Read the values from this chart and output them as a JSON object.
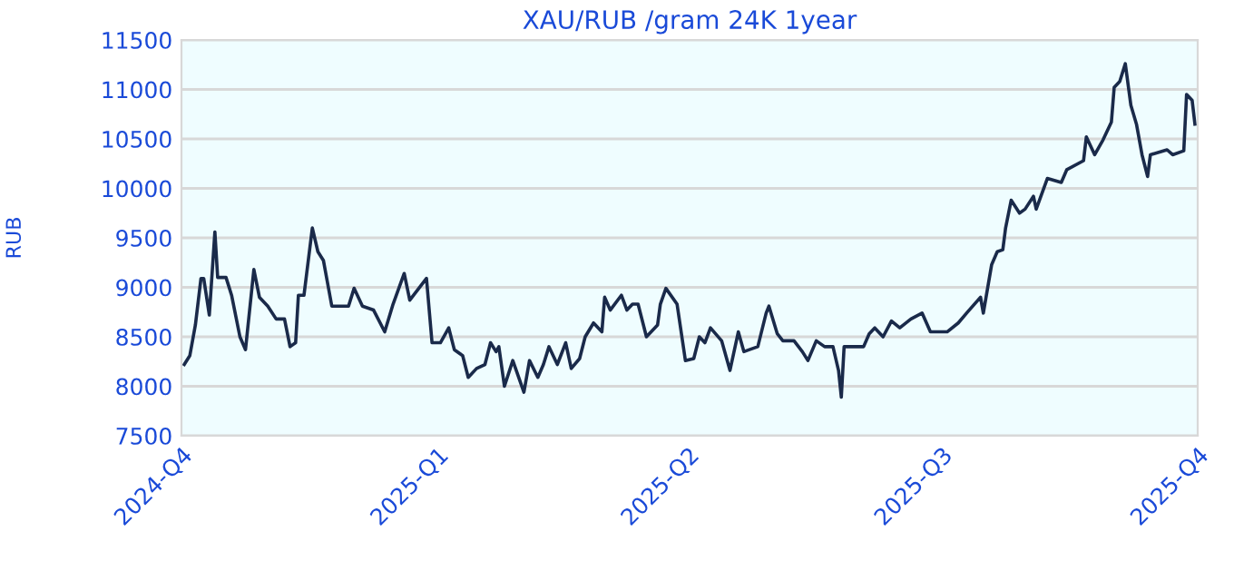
{
  "chart_data": {
    "type": "line",
    "title": "XAU/RUB /gram 24K 1year",
    "ylabel": "RUB",
    "x": [
      "2024-10-02",
      "2024-10-04",
      "2024-10-06",
      "2024-10-08",
      "2024-10-09",
      "2024-10-11",
      "2024-10-13",
      "2024-10-14",
      "2024-10-17",
      "2024-10-19",
      "2024-10-22",
      "2024-10-24",
      "2024-10-27",
      "2024-10-29",
      "2024-11-01",
      "2024-11-04",
      "2024-11-07",
      "2024-11-09",
      "2024-11-11",
      "2024-11-12",
      "2024-11-14",
      "2024-11-17",
      "2024-11-19",
      "2024-11-21",
      "2024-11-24",
      "2024-11-30",
      "2024-12-02",
      "2024-12-05",
      "2024-12-09",
      "2024-12-13",
      "2024-12-16",
      "2024-12-20",
      "2024-12-22",
      "2024-12-28",
      "2024-12-30",
      "2025-01-02",
      "2025-01-05",
      "2025-01-07",
      "2025-01-10",
      "2025-01-12",
      "2025-01-15",
      "2025-01-18",
      "2025-01-20",
      "2025-01-22",
      "2025-01-23",
      "2025-01-25",
      "2025-01-28",
      "2025-02-01",
      "2025-02-03",
      "2025-02-06",
      "2025-02-08",
      "2025-02-10",
      "2025-02-13",
      "2025-02-16",
      "2025-02-18",
      "2025-02-21",
      "2025-02-23",
      "2025-02-26",
      "2025-03-01",
      "2025-03-02",
      "2025-03-04",
      "2025-03-08",
      "2025-03-10",
      "2025-03-12",
      "2025-03-14",
      "2025-03-17",
      "2025-03-21",
      "2025-03-22",
      "2025-03-24",
      "2025-03-28",
      "2025-03-31",
      "2025-04-03",
      "2025-04-05",
      "2025-04-07",
      "2025-04-09",
      "2025-04-13",
      "2025-04-16",
      "2025-04-19",
      "2025-04-21",
      "2025-04-23",
      "2025-04-26",
      "2025-04-29",
      "2025-04-30",
      "2025-05-03",
      "2025-05-05",
      "2025-05-09",
      "2025-05-12",
      "2025-05-14",
      "2025-05-17",
      "2025-05-20",
      "2025-05-23",
      "2025-05-25",
      "2025-05-26",
      "2025-05-27",
      "2025-06-03",
      "2025-06-05",
      "2025-06-07",
      "2025-06-10",
      "2025-06-13",
      "2025-06-16",
      "2025-06-20",
      "2025-06-24",
      "2025-06-27",
      "2025-07-03",
      "2025-07-07",
      "2025-07-10",
      "2025-07-15",
      "2025-07-16",
      "2025-07-19",
      "2025-07-21",
      "2025-07-23",
      "2025-07-24",
      "2025-07-26",
      "2025-07-29",
      "2025-07-31",
      "2025-08-03",
      "2025-08-04",
      "2025-08-08",
      "2025-08-13",
      "2025-08-15",
      "2025-08-21",
      "2025-08-22",
      "2025-08-25",
      "2025-08-28",
      "2025-08-31",
      "2025-09-01",
      "2025-09-03",
      "2025-09-05",
      "2025-09-07",
      "2025-09-09",
      "2025-09-11",
      "2025-09-13",
      "2025-09-14",
      "2025-09-20",
      "2025-09-22",
      "2025-09-26",
      "2025-09-27",
      "2025-09-29",
      "2025-09-30"
    ],
    "series": [
      {
        "color": "#1a2a4a",
        "values": [
          8220,
          8310,
          8620,
          9090,
          9090,
          8720,
          9560,
          9100,
          9100,
          8920,
          8500,
          8370,
          9180,
          8900,
          8810,
          8680,
          8680,
          8400,
          8440,
          8920,
          8920,
          9600,
          9360,
          9270,
          8810,
          8810,
          8990,
          8810,
          8770,
          8550,
          8830,
          9140,
          8870,
          9090,
          8440,
          8440,
          8590,
          8370,
          8310,
          8090,
          8180,
          8220,
          8440,
          8350,
          8400,
          8000,
          8260,
          7940,
          8260,
          8090,
          8220,
          8400,
          8220,
          8440,
          8180,
          8280,
          8500,
          8640,
          8550,
          8900,
          8770,
          8920,
          8770,
          8830,
          8830,
          8500,
          8620,
          8830,
          8990,
          8830,
          8260,
          8280,
          8500,
          8440,
          8590,
          8460,
          8160,
          8550,
          8350,
          8370,
          8400,
          8740,
          8810,
          8530,
          8460,
          8460,
          8350,
          8260,
          8460,
          8400,
          8400,
          8160,
          7890,
          8400,
          8400,
          8530,
          8590,
          8500,
          8660,
          8590,
          8680,
          8740,
          8550,
          8550,
          8640,
          8740,
          8900,
          8740,
          9230,
          9360,
          9380,
          9600,
          9880,
          9750,
          9790,
          9920,
          9790,
          10100,
          10060,
          10190,
          10280,
          10520,
          10340,
          10490,
          10670,
          11020,
          11080,
          11260,
          10840,
          10650,
          10340,
          10120,
          10340,
          10390,
          10340,
          10380,
          10950,
          10890,
          10650
        ]
      }
    ],
    "xlim": [
      "2024-10-01",
      "2025-10-01"
    ],
    "xticks": [
      {
        "value": "2024-10-01",
        "label": "2024-Q4"
      },
      {
        "value": "2025-01-01",
        "label": "2025-Q1"
      },
      {
        "value": "2025-04-01",
        "label": "2025-Q2"
      },
      {
        "value": "2025-07-01",
        "label": "2025-Q3"
      },
      {
        "value": "2025-10-01",
        "label": "2025-Q4"
      }
    ],
    "ylim": [
      7500,
      11500
    ],
    "yticks": [
      7500,
      8000,
      8500,
      9000,
      9500,
      10000,
      10500,
      11000,
      11500
    ],
    "grid": "y",
    "marker": "none",
    "line_style": "solid"
  }
}
